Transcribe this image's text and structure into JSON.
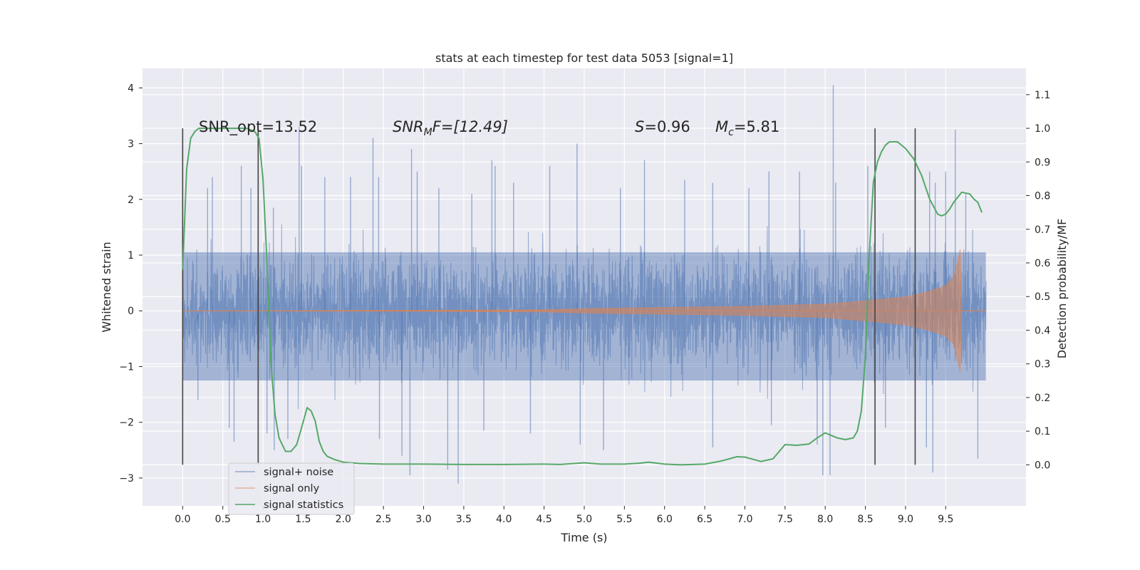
{
  "chart_data": {
    "type": "line",
    "title": "stats at each timestep for test data 5053 [signal=1]",
    "xlabel": "Time (s)",
    "ylabel": "Whitened strain",
    "y2label": "Detection probability/MF",
    "xlim": [
      -0.5,
      10.5
    ],
    "ylim": [
      -3.5,
      4.35
    ],
    "y2lim": [
      -0.122,
      1.178
    ],
    "x_ticks": [
      "0.0",
      "0.5",
      "1.0",
      "1.5",
      "2.0",
      "2.5",
      "3.0",
      "3.5",
      "4.0",
      "4.5",
      "5.0",
      "5.5",
      "6.0",
      "6.5",
      "7.0",
      "7.5",
      "8.0",
      "8.5",
      "9.0",
      "9.5"
    ],
    "x_tick_values": [
      0,
      0.5,
      1,
      1.5,
      2,
      2.5,
      3,
      3.5,
      4,
      4.5,
      5,
      5.5,
      6,
      6.5,
      7,
      7.5,
      8,
      8.5,
      9,
      9.5
    ],
    "y_ticks": [
      "−3",
      "−2",
      "−1",
      "0",
      "1",
      "2",
      "3",
      "4"
    ],
    "y_tick_values": [
      -3,
      -2,
      -1,
      0,
      1,
      2,
      3,
      4
    ],
    "y2_ticks": [
      "0.0",
      "0.1",
      "0.2",
      "0.3",
      "0.4",
      "0.5",
      "0.6",
      "0.7",
      "0.8",
      "0.9",
      "1.0",
      "1.1"
    ],
    "y2_tick_values": [
      0,
      0.1,
      0.2,
      0.3,
      0.4,
      0.5,
      0.6,
      0.7,
      0.8,
      0.9,
      1.0,
      1.1
    ],
    "grid": true,
    "legend_position": "lower-left",
    "annotations": {
      "snr_opt": "SNR_opt=13.52",
      "snr_mf_main": "SNR",
      "snr_mf_sub": "M",
      "snr_mf_rest": "F=[12.49]",
      "s_main": "S",
      "s_rest": "=0.96",
      "mc_main": "M",
      "mc_sub": "c",
      "mc_rest": "=5.81"
    },
    "vertical_lines_x": [
      0.0,
      0.94,
      8.62,
      9.12
    ],
    "series": [
      {
        "name": "signal+ noise",
        "color": "#4c72b0",
        "description_range": "noise band between about -1.3 and 1.5 whitened strain from t=0 to t=10",
        "envelope_x": [
          0,
          10
        ],
        "spikes": [
          {
            "x": 0.31,
            "y": 2.2
          },
          {
            "x": 0.37,
            "y": 2.4
          },
          {
            "x": 0.73,
            "y": 2.6
          },
          {
            "x": 0.85,
            "y": 2.2
          },
          {
            "x": 1.13,
            "y": 1.85
          },
          {
            "x": 1.45,
            "y": 3.3
          },
          {
            "x": 1.48,
            "y": 2.6
          },
          {
            "x": 1.77,
            "y": 2.4
          },
          {
            "x": 2.09,
            "y": 2.4
          },
          {
            "x": 2.37,
            "y": 3.1
          },
          {
            "x": 2.44,
            "y": 2.4
          },
          {
            "x": 2.85,
            "y": 2.9
          },
          {
            "x": 2.92,
            "y": 2.5
          },
          {
            "x": 3.19,
            "y": 2.2
          },
          {
            "x": 3.6,
            "y": 2.1
          },
          {
            "x": 3.85,
            "y": 2.7
          },
          {
            "x": 3.89,
            "y": 2.6
          },
          {
            "x": 4.12,
            "y": 2.3
          },
          {
            "x": 4.57,
            "y": 2.6
          },
          {
            "x": 4.91,
            "y": 3.0
          },
          {
            "x": 5.45,
            "y": 2.2
          },
          {
            "x": 5.75,
            "y": 2.7
          },
          {
            "x": 6.25,
            "y": 2.35
          },
          {
            "x": 6.6,
            "y": 2.3
          },
          {
            "x": 7.05,
            "y": 2.2
          },
          {
            "x": 7.3,
            "y": 2.5
          },
          {
            "x": 7.68,
            "y": 2.5
          },
          {
            "x": 8.1,
            "y": 4.05
          },
          {
            "x": 8.13,
            "y": 2.3
          },
          {
            "x": 8.53,
            "y": 2.6
          },
          {
            "x": 9.3,
            "y": 2.5
          },
          {
            "x": 9.37,
            "y": 2.3
          },
          {
            "x": 9.5,
            "y": 2.5
          },
          {
            "x": 9.62,
            "y": 3.25
          },
          {
            "x": 9.75,
            "y": 2.1
          },
          {
            "x": 0.19,
            "y": -1.6
          },
          {
            "x": 0.58,
            "y": -2.1
          },
          {
            "x": 0.64,
            "y": -2.35
          },
          {
            "x": 1.05,
            "y": -2.2
          },
          {
            "x": 1.14,
            "y": -2.5
          },
          {
            "x": 1.31,
            "y": -2.3
          },
          {
            "x": 2.45,
            "y": -2.3
          },
          {
            "x": 2.73,
            "y": -2.6
          },
          {
            "x": 2.83,
            "y": -2.95
          },
          {
            "x": 3.3,
            "y": -2.85
          },
          {
            "x": 3.43,
            "y": -3.1
          },
          {
            "x": 3.75,
            "y": -2.15
          },
          {
            "x": 4.33,
            "y": -2.2
          },
          {
            "x": 4.95,
            "y": -2.4
          },
          {
            "x": 5.24,
            "y": -2.5
          },
          {
            "x": 6.6,
            "y": -2.45
          },
          {
            "x": 7.33,
            "y": -2.05
          },
          {
            "x": 7.9,
            "y": -2.4
          },
          {
            "x": 7.97,
            "y": -2.95
          },
          {
            "x": 8.06,
            "y": -2.95
          },
          {
            "x": 8.75,
            "y": -2.1
          },
          {
            "x": 9.26,
            "y": -2.45
          },
          {
            "x": 9.34,
            "y": -2.9
          },
          {
            "x": 9.9,
            "y": -2.65
          }
        ]
      },
      {
        "name": "signal only",
        "color": "#dd8452",
        "envelope": [
          {
            "x": 0.0,
            "a": 0.0
          },
          {
            "x": 3.0,
            "a": 0.01
          },
          {
            "x": 4.5,
            "a": 0.02
          },
          {
            "x": 5.0,
            "a": 0.04
          },
          {
            "x": 5.5,
            "a": 0.05
          },
          {
            "x": 6.0,
            "a": 0.06
          },
          {
            "x": 7.0,
            "a": 0.08
          },
          {
            "x": 8.0,
            "a": 0.12
          },
          {
            "x": 8.5,
            "a": 0.18
          },
          {
            "x": 9.0,
            "a": 0.25
          },
          {
            "x": 9.3,
            "a": 0.35
          },
          {
            "x": 9.5,
            "a": 0.45
          },
          {
            "x": 9.6,
            "a": 0.6
          },
          {
            "x": 9.66,
            "a": 0.95
          },
          {
            "x": 9.68,
            "a": 1.1
          },
          {
            "x": 9.7,
            "a": 0.0
          },
          {
            "x": 10.0,
            "a": 0.0
          }
        ]
      },
      {
        "name": "signal statistics",
        "color": "#55a868",
        "x": [
          0.0,
          0.05,
          0.1,
          0.15,
          0.2,
          0.3,
          0.4,
          0.6,
          0.8,
          0.9,
          0.95,
          1.0,
          1.05,
          1.1,
          1.15,
          1.2,
          1.28,
          1.35,
          1.42,
          1.48,
          1.55,
          1.6,
          1.65,
          1.7,
          1.75,
          1.8,
          1.9,
          2.0,
          2.2,
          2.5,
          3.0,
          3.5,
          4.0,
          4.5,
          4.7,
          5.0,
          5.2,
          5.5,
          5.7,
          5.8,
          6.0,
          6.2,
          6.5,
          6.7,
          6.9,
          7.0,
          7.2,
          7.35,
          7.5,
          7.65,
          7.8,
          7.9,
          8.0,
          8.05,
          8.15,
          8.25,
          8.35,
          8.4,
          8.45,
          8.5,
          8.55,
          8.6,
          8.65,
          8.7,
          8.75,
          8.8,
          8.9,
          9.0,
          9.1,
          9.2,
          9.3,
          9.4,
          9.45,
          9.5,
          9.55,
          9.6,
          9.7,
          9.8,
          9.85,
          9.9,
          9.95
        ],
        "values": [
          0.58,
          0.88,
          0.97,
          0.99,
          1.0,
          1.0,
          1.0,
          1.0,
          1.0,
          0.99,
          0.97,
          0.85,
          0.6,
          0.3,
          0.15,
          0.08,
          0.04,
          0.04,
          0.06,
          0.11,
          0.17,
          0.16,
          0.13,
          0.07,
          0.04,
          0.025,
          0.015,
          0.008,
          0.004,
          0.002,
          0.002,
          0.001,
          0.001,
          0.002,
          0.001,
          0.006,
          0.002,
          0.002,
          0.005,
          0.008,
          0.002,
          0.0,
          0.002,
          0.011,
          0.024,
          0.023,
          0.01,
          0.018,
          0.06,
          0.058,
          0.062,
          0.08,
          0.095,
          0.09,
          0.08,
          0.075,
          0.08,
          0.1,
          0.16,
          0.32,
          0.63,
          0.84,
          0.9,
          0.93,
          0.95,
          0.96,
          0.96,
          0.94,
          0.91,
          0.86,
          0.79,
          0.745,
          0.74,
          0.745,
          0.76,
          0.78,
          0.81,
          0.805,
          0.79,
          0.78,
          0.75
        ]
      }
    ]
  }
}
